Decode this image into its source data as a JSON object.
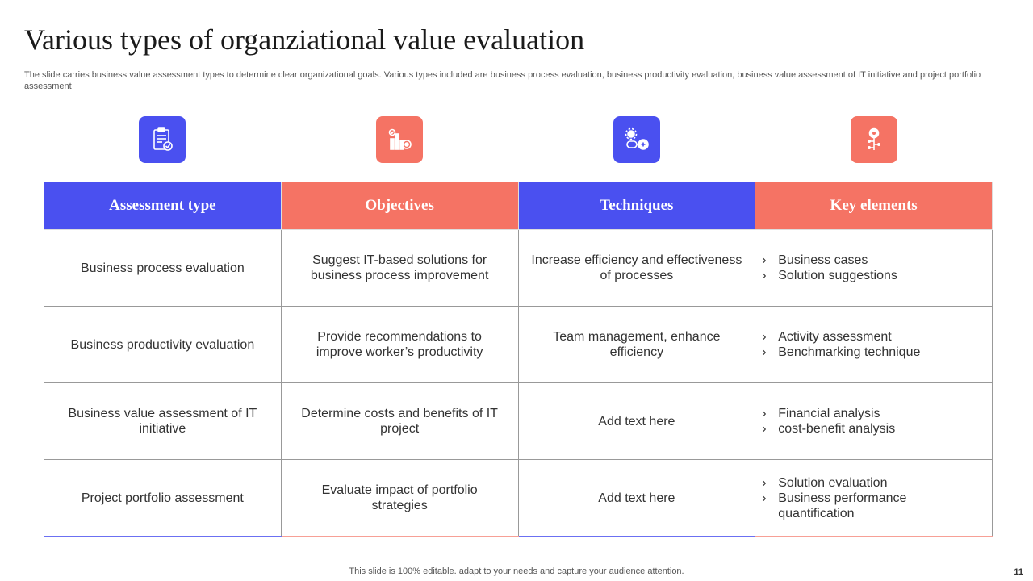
{
  "slide": {
    "title": "Various types of organziational value evaluation",
    "subtitle": "The slide carries business value assessment types to determine clear organizational goals. Various types included are business process evaluation, business productivity evaluation, business value assessment of IT initiative and project portfolio assessment",
    "footer": "This slide is 100% editable. adapt to your needs and capture your audience attention.",
    "page_number": "11"
  },
  "colors": {
    "blue": "#4a50f0",
    "coral": "#f57364"
  },
  "icons": [
    "clipboard-check-icon",
    "bar-chart-target-icon",
    "gear-brain-process-icon",
    "key-network-icon"
  ],
  "table": {
    "headers": [
      "Assessment type",
      "Objectives",
      "Techniques",
      "Key elements"
    ],
    "rows": [
      {
        "type": "Business process evaluation",
        "objective": "Suggest IT-based solutions for business process improvement",
        "technique": "Increase efficiency and effectiveness of processes",
        "elements": [
          "Business cases",
          "Solution suggestions"
        ]
      },
      {
        "type": "Business productivity evaluation",
        "objective": "Provide recommendations to improve worker’s productivity",
        "technique": "Team management, enhance efficiency",
        "elements": [
          "Activity assessment",
          "Benchmarking technique"
        ]
      },
      {
        "type": "Business value assessment of IT initiative",
        "objective": "Determine costs and benefits of IT project",
        "technique": "Add text here",
        "elements": [
          "Financial analysis",
          "cost-benefit analysis"
        ]
      },
      {
        "type": "Project portfolio assessment",
        "objective": "Evaluate impact of portfolio strategies",
        "technique": "Add text here",
        "elements": [
          "Solution evaluation",
          "Business performance quantification"
        ]
      }
    ]
  }
}
